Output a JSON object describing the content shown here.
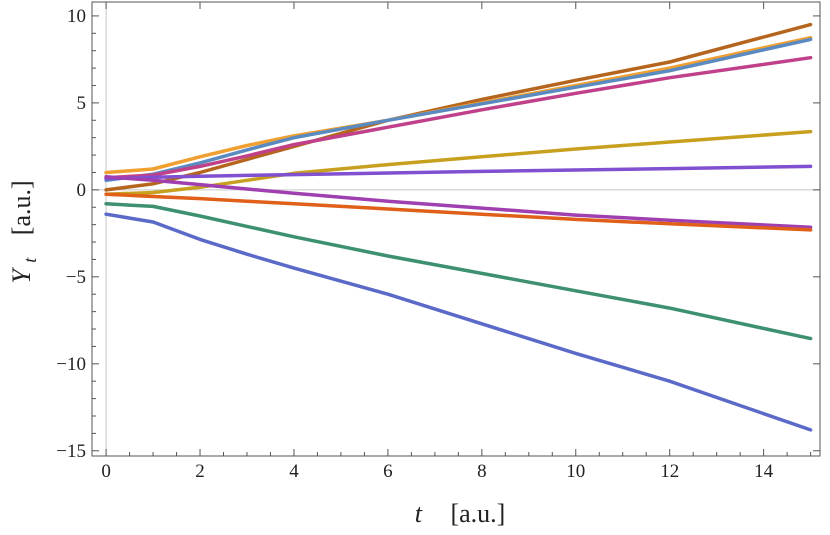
{
  "chart_data": {
    "type": "line",
    "xlabel_var": "t",
    "xlabel_unit": "[a.u.]",
    "ylabel_var": "Y",
    "ylabel_sub": "t",
    "ylabel_unit": "[a.u.]",
    "xlim": [
      -0.3,
      15.2
    ],
    "ylim": [
      -15.3,
      10.8
    ],
    "xticks": [
      0,
      2,
      4,
      6,
      8,
      10,
      12,
      14
    ],
    "yticks": [
      -15,
      -10,
      -5,
      0,
      5,
      10
    ],
    "ytick_labels": [
      "−15",
      "−10",
      "−5",
      "0",
      "5",
      "10"
    ],
    "grid": false,
    "series": [
      {
        "color": "#b5651d",
        "x": [
          0,
          1,
          2,
          3,
          4,
          6,
          8,
          10,
          12,
          15
        ],
        "y": [
          0.0,
          0.35,
          1.0,
          1.75,
          2.5,
          4.0,
          5.2,
          6.3,
          7.35,
          9.5
        ]
      },
      {
        "color": "#f0a030",
        "x": [
          0,
          1,
          2,
          3,
          4,
          6,
          8,
          10,
          12,
          15
        ],
        "y": [
          1.0,
          1.2,
          1.9,
          2.55,
          3.1,
          4.0,
          5.0,
          6.0,
          7.0,
          8.75
        ]
      },
      {
        "color": "#5b8ac0",
        "x": [
          0,
          1,
          2,
          3,
          4,
          6,
          8,
          10,
          12,
          15
        ],
        "y": [
          0.55,
          0.9,
          1.55,
          2.3,
          3.0,
          4.0,
          4.95,
          5.9,
          6.85,
          8.65
        ]
      },
      {
        "color": "#c0418a",
        "x": [
          0,
          1,
          2,
          3,
          4,
          6,
          8,
          10,
          12,
          15
        ],
        "y": [
          0.7,
          0.85,
          1.35,
          1.95,
          2.6,
          3.6,
          4.6,
          5.55,
          6.45,
          7.6
        ]
      },
      {
        "color": "#c8a020",
        "x": [
          0,
          1,
          2,
          3,
          4,
          6,
          8,
          10,
          12,
          15
        ],
        "y": [
          -0.25,
          -0.15,
          0.15,
          0.55,
          0.95,
          1.45,
          1.9,
          2.35,
          2.75,
          3.35
        ]
      },
      {
        "color": "#8050d0",
        "x": [
          0,
          1,
          2,
          3,
          4,
          6,
          8,
          10,
          12,
          15
        ],
        "y": [
          0.65,
          0.72,
          0.78,
          0.83,
          0.88,
          0.97,
          1.06,
          1.14,
          1.22,
          1.35
        ]
      },
      {
        "color": "#a040b0",
        "x": [
          0,
          1,
          2,
          3,
          4,
          6,
          8,
          10,
          12,
          15
        ],
        "y": [
          0.75,
          0.55,
          0.3,
          0.05,
          -0.2,
          -0.65,
          -1.05,
          -1.45,
          -1.75,
          -2.15
        ]
      },
      {
        "color": "#e0601a",
        "x": [
          0,
          1,
          2,
          3,
          4,
          6,
          8,
          10,
          12,
          15
        ],
        "y": [
          -0.25,
          -0.38,
          -0.5,
          -0.65,
          -0.8,
          -1.1,
          -1.4,
          -1.7,
          -1.95,
          -2.3
        ]
      },
      {
        "color": "#3d9070",
        "x": [
          0,
          1,
          2,
          3,
          4,
          6,
          8,
          10,
          12,
          15
        ],
        "y": [
          -0.8,
          -0.95,
          -1.5,
          -2.1,
          -2.7,
          -3.8,
          -4.8,
          -5.8,
          -6.8,
          -8.55
        ]
      },
      {
        "color": "#5b6ac8",
        "x": [
          0,
          1,
          2,
          3,
          4,
          6,
          8,
          10,
          12,
          15
        ],
        "y": [
          -1.4,
          -1.85,
          -2.85,
          -3.7,
          -4.5,
          -6.0,
          -7.7,
          -9.4,
          -11.0,
          -13.8
        ]
      }
    ]
  }
}
